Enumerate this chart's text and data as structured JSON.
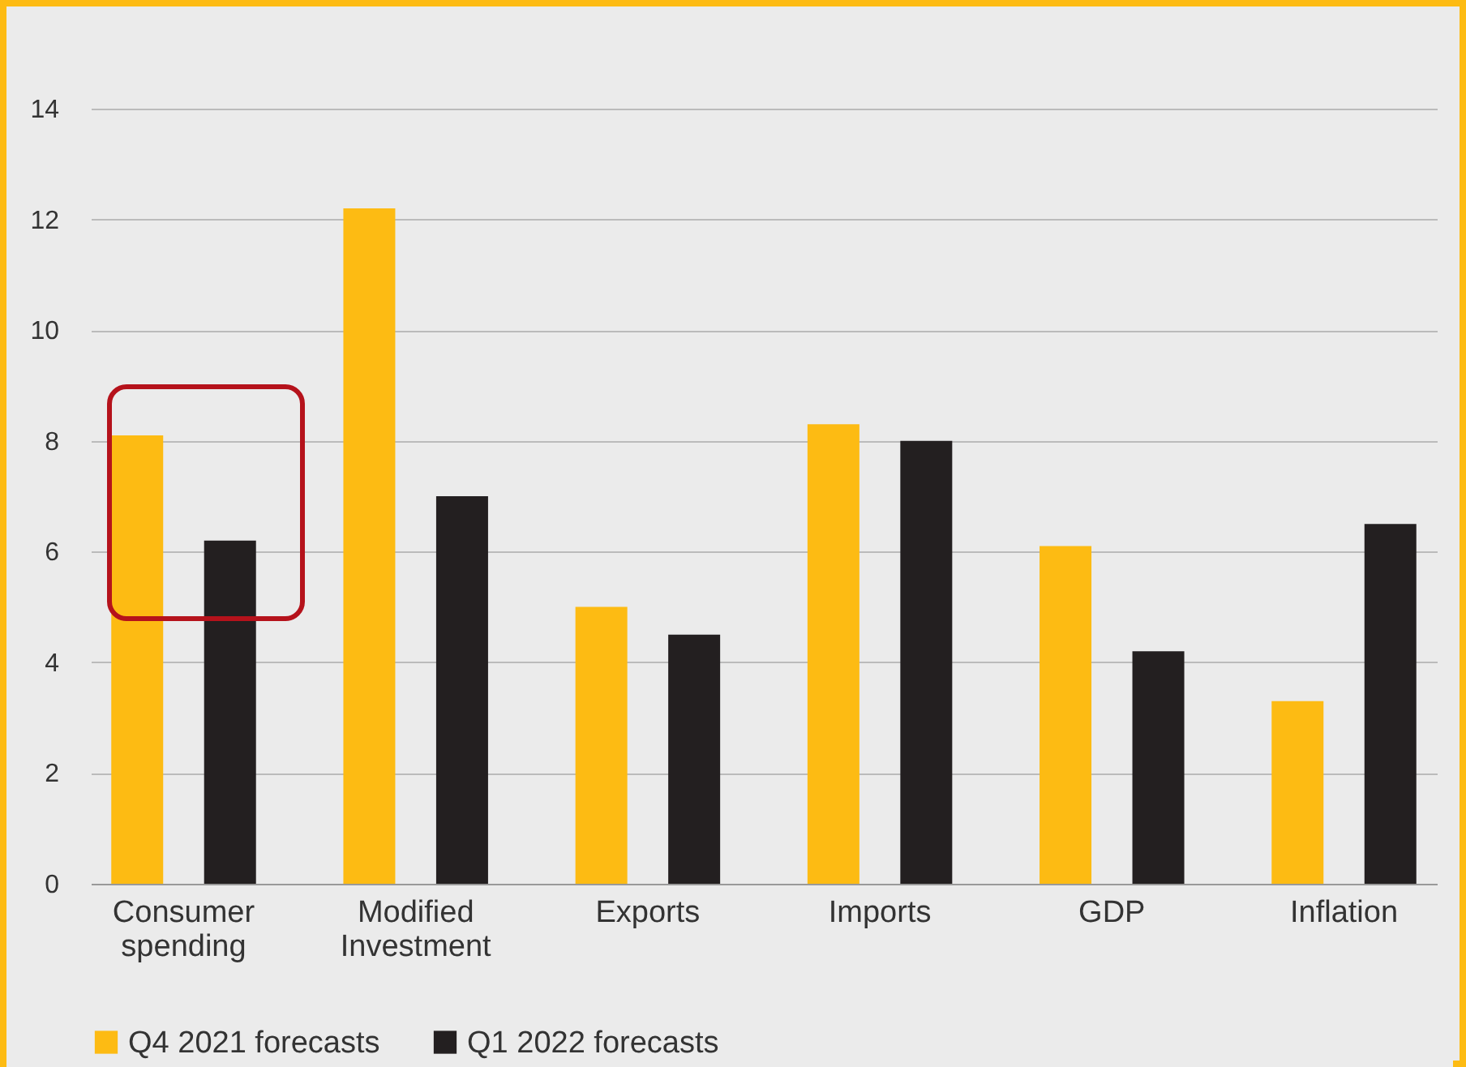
{
  "chart_data": {
    "type": "bar",
    "categories": [
      "Consumer spending",
      "Modified Investment",
      "Exports",
      "Imports",
      "GDP",
      "Inflation"
    ],
    "series": [
      {
        "name": "Q4 2021 forecasts",
        "color": "#fdbb13",
        "values": [
          8.1,
          12.2,
          5.0,
          8.3,
          6.1,
          3.3
        ]
      },
      {
        "name": "Q1 2022 forecasts",
        "color": "#231f20",
        "values": [
          6.2,
          7.0,
          4.5,
          8.0,
          4.2,
          6.5
        ]
      }
    ],
    "ylim": [
      0,
      14
    ],
    "yticks": [
      0,
      2,
      4,
      6,
      8,
      10,
      12,
      14
    ],
    "grid": "y",
    "legend": "bottom"
  }
}
